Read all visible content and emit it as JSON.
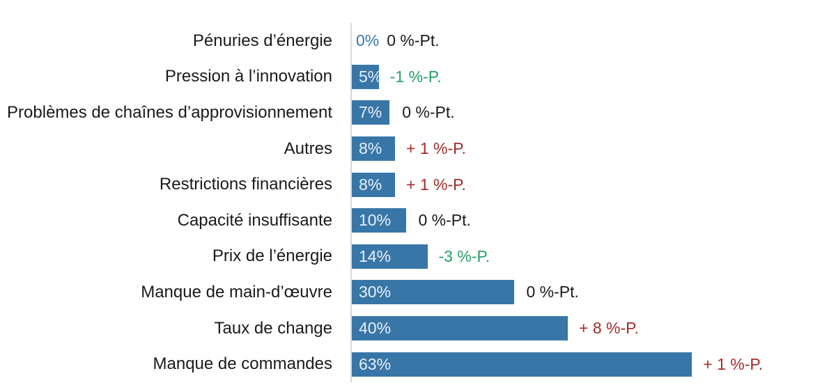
{
  "chart_data": {
    "type": "bar",
    "orientation": "horizontal",
    "title": "",
    "xlabel": "",
    "ylabel": "",
    "xlim": [
      0,
      70
    ],
    "grid": false,
    "legend": null,
    "categories": [
      "Pénuries d’énergie",
      "Pression à l’innovation",
      "Problèmes de chaînes d’approvisionnement",
      "Autres",
      "Restrictions financières",
      "Capacité insuffisante",
      "Prix de l’énergie",
      "Manque de main-d’œuvre",
      "Taux de change",
      "Manque de commandes"
    ],
    "values": [
      0,
      5,
      7,
      8,
      8,
      10,
      14,
      30,
      40,
      63
    ],
    "bar_labels": [
      "0%",
      "5%",
      "7%",
      "8%",
      "8%",
      "10%",
      "14%",
      "30%",
      "40%",
      "63%"
    ],
    "delta_labels": [
      "0 %-Pt.",
      "-1 %-P.",
      "0 %-Pt.",
      "+ 1 %-P.",
      "+ 1 %-P.",
      "0 %-Pt.",
      "-3 %-P.",
      "0 %-Pt.",
      "+ 8 %-P.",
      "+ 1 %-P."
    ],
    "delta_types": [
      "zero",
      "negative",
      "zero",
      "positive",
      "positive",
      "zero",
      "negative",
      "zero",
      "positive",
      "positive"
    ],
    "colors": {
      "bar": "#3876a8",
      "bar_label": "#eaf1f7",
      "category_label": "#1a1a1a",
      "zero_value_label": "#3876a8",
      "delta_positive": "#a62b26",
      "delta_negative": "#23a164",
      "delta_zero": "#1a1a1a",
      "axis_line": "#d9d9d9",
      "background": "#ffffff"
    }
  }
}
